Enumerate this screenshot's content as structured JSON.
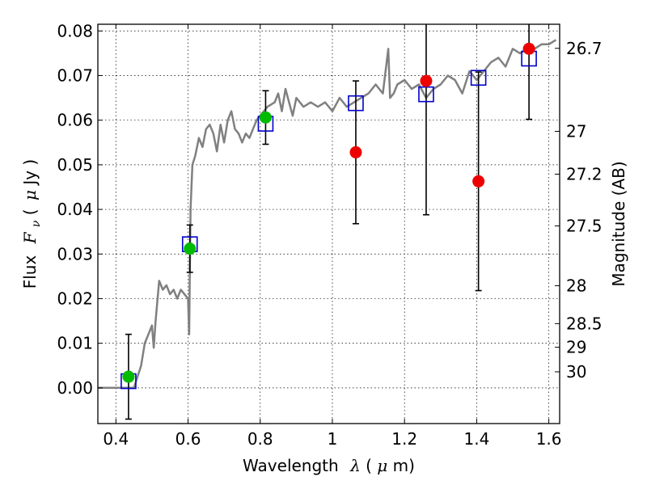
{
  "chart_data": {
    "type": "scatter",
    "title": "",
    "xlabel": {
      "text": "Wavelength",
      "symbol": "λ",
      "unit_open": " (",
      "unit_math": "μ",
      "unit_close": "m)"
    },
    "ylabel": {
      "text": "Flux",
      "symbol": "F",
      "subscript": "ν",
      "unit_open": " (",
      "unit_math": "μ",
      "unit_close": "Jy )"
    },
    "y2label": "Magnitude (AB)",
    "xlim": [
      0.35,
      1.63
    ],
    "ylim": [
      -0.008,
      0.0815
    ],
    "grid": true,
    "x_ticks": [
      {
        "value": 0.4,
        "label": "0.4"
      },
      {
        "value": 0.6,
        "label": "0.6"
      },
      {
        "value": 0.8,
        "label": "0.8"
      },
      {
        "value": 1.0,
        "label": "1"
      },
      {
        "value": 1.2,
        "label": "1.2"
      },
      {
        "value": 1.4,
        "label": "1.4"
      },
      {
        "value": 1.6,
        "label": "1.6"
      }
    ],
    "y_ticks": [
      {
        "value": 0.0,
        "label": "0.00"
      },
      {
        "value": 0.01,
        "label": "0.01"
      },
      {
        "value": 0.02,
        "label": "0.02"
      },
      {
        "value": 0.03,
        "label": "0.03"
      },
      {
        "value": 0.04,
        "label": "0.04"
      },
      {
        "value": 0.05,
        "label": "0.05"
      },
      {
        "value": 0.06,
        "label": "0.06"
      },
      {
        "value": 0.07,
        "label": "0.07"
      },
      {
        "value": 0.08,
        "label": "0.08"
      }
    ],
    "magnitude_ticks": [
      {
        "label": "26.7",
        "flux": 0.0761
      },
      {
        "label": "27",
        "flux": 0.0575
      },
      {
        "label": "27.2",
        "flux": 0.0479
      },
      {
        "label": "27.5",
        "flux": 0.0363
      },
      {
        "label": "28",
        "flux": 0.0229
      },
      {
        "label": "28.5",
        "flux": 0.0144
      },
      {
        "label": "29",
        "flux": 0.0091
      },
      {
        "label": "30",
        "flux": 0.0036
      }
    ],
    "colors": {
      "model": "#808080",
      "detection": "#00bb00",
      "nondetection": "#ee0000",
      "model_flux": "#0000cc",
      "errorbar": "#000000"
    },
    "model_spectrum": {
      "x": [
        0.35,
        0.4,
        0.45,
        0.47,
        0.48,
        0.49,
        0.5,
        0.505,
        0.51,
        0.52,
        0.53,
        0.54,
        0.55,
        0.56,
        0.57,
        0.58,
        0.59,
        0.6,
        0.603,
        0.607,
        0.612,
        0.62,
        0.63,
        0.64,
        0.65,
        0.66,
        0.67,
        0.68,
        0.69,
        0.7,
        0.71,
        0.72,
        0.73,
        0.74,
        0.75,
        0.76,
        0.77,
        0.78,
        0.79,
        0.8,
        0.82,
        0.84,
        0.85,
        0.86,
        0.87,
        0.88,
        0.89,
        0.9,
        0.92,
        0.94,
        0.96,
        0.98,
        1.0,
        1.02,
        1.04,
        1.06,
        1.08,
        1.1,
        1.12,
        1.14,
        1.155,
        1.16,
        1.17,
        1.18,
        1.2,
        1.22,
        1.24,
        1.26,
        1.28,
        1.3,
        1.32,
        1.34,
        1.36,
        1.38,
        1.4,
        1.42,
        1.44,
        1.46,
        1.48,
        1.5,
        1.52,
        1.54,
        1.56,
        1.58,
        1.6,
        1.62
      ],
      "y": [
        0.0,
        0.0,
        0.0,
        0.005,
        0.01,
        0.012,
        0.014,
        0.009,
        0.015,
        0.024,
        0.022,
        0.023,
        0.021,
        0.022,
        0.02,
        0.022,
        0.021,
        0.02,
        0.012,
        0.04,
        0.05,
        0.052,
        0.056,
        0.054,
        0.058,
        0.059,
        0.057,
        0.053,
        0.059,
        0.055,
        0.06,
        0.062,
        0.058,
        0.057,
        0.055,
        0.057,
        0.056,
        0.058,
        0.06,
        0.061,
        0.063,
        0.064,
        0.066,
        0.062,
        0.067,
        0.064,
        0.061,
        0.065,
        0.063,
        0.064,
        0.063,
        0.064,
        0.062,
        0.065,
        0.063,
        0.064,
        0.065,
        0.066,
        0.068,
        0.066,
        0.076,
        0.065,
        0.066,
        0.068,
        0.069,
        0.067,
        0.068,
        0.065,
        0.067,
        0.068,
        0.07,
        0.069,
        0.066,
        0.071,
        0.069,
        0.071,
        0.073,
        0.074,
        0.072,
        0.076,
        0.075,
        0.076,
        0.076,
        0.077,
        0.077,
        0.078
      ]
    },
    "detections": [
      {
        "x": 0.435,
        "y": 0.0025,
        "err_low": 0.0095,
        "err_high": 0.0095
      },
      {
        "x": 0.605,
        "y": 0.0312,
        "err_low": 0.0053,
        "err_high": 0.0053
      },
      {
        "x": 0.815,
        "y": 0.0606,
        "err_low": 0.006,
        "err_high": 0.006
      }
    ],
    "nondetections": [
      {
        "x": 1.065,
        "y": 0.0528,
        "err_low": 0.016,
        "err_high": 0.016
      },
      {
        "x": 1.26,
        "y": 0.0688,
        "err_low": 0.03,
        "err_high": 0.03
      },
      {
        "x": 1.405,
        "y": 0.0463,
        "err_low": 0.0245,
        "err_high": 0.0245
      },
      {
        "x": 1.545,
        "y": 0.076,
        "err_low": 0.0158,
        "err_high": 0.0158
      }
    ],
    "model_fluxes": [
      {
        "x": 0.435,
        "y": 0.0015
      },
      {
        "x": 0.605,
        "y": 0.0322
      },
      {
        "x": 0.815,
        "y": 0.0592
      },
      {
        "x": 1.065,
        "y": 0.0638
      },
      {
        "x": 1.26,
        "y": 0.0658
      },
      {
        "x": 1.405,
        "y": 0.0695
      },
      {
        "x": 1.545,
        "y": 0.0738
      }
    ]
  }
}
